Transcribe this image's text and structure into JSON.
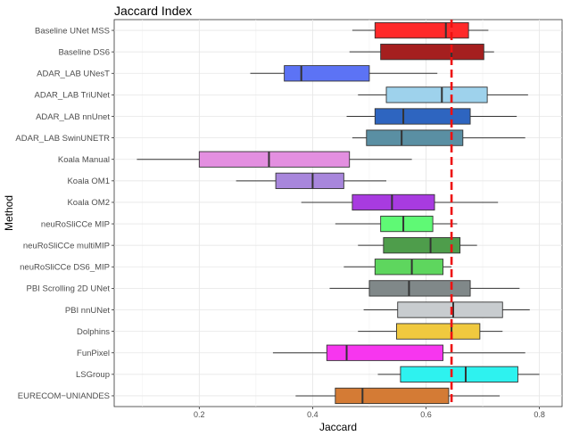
{
  "chart_data": {
    "type": "boxplot",
    "title": "Jaccard Index",
    "xlabel": "Jaccard",
    "ylabel": "Method",
    "xlim": [
      0.05,
      0.84
    ],
    "xticks": [
      0.2,
      0.4,
      0.6,
      0.8
    ],
    "xtick_labels": [
      "0.2",
      "0.4",
      "0.6",
      "0.8"
    ],
    "reference_line": {
      "x": 0.645,
      "color": "#ee1111",
      "style": "dashed"
    },
    "grid": true,
    "categories": [
      {
        "label": "Baseline UNet MSS",
        "whisker_low": 0.47,
        "q1": 0.51,
        "median": 0.635,
        "q3": 0.675,
        "whisker_high": 0.71,
        "color": "#ff2a2a"
      },
      {
        "label": "Baseline DS6",
        "whisker_low": 0.465,
        "q1": 0.52,
        "median": 0.645,
        "q3": 0.702,
        "whisker_high": 0.72,
        "color": "#a51f1f"
      },
      {
        "label": "ADAR_LAB UNesT",
        "whisker_low": 0.29,
        "q1": 0.35,
        "median": 0.38,
        "q3": 0.5,
        "whisker_high": 0.62,
        "color": "#5c73f5"
      },
      {
        "label": "ADAR_LAB TriUNet",
        "whisker_low": 0.48,
        "q1": 0.53,
        "median": 0.628,
        "q3": 0.708,
        "whisker_high": 0.78,
        "color": "#9ed2ec"
      },
      {
        "label": "ADAR_LAB nnUnet",
        "whisker_low": 0.46,
        "q1": 0.51,
        "median": 0.56,
        "q3": 0.678,
        "whisker_high": 0.76,
        "color": "#2e65c0"
      },
      {
        "label": "ADAR_LAB SwinUNETR",
        "whisker_low": 0.47,
        "q1": 0.495,
        "median": 0.557,
        "q3": 0.665,
        "whisker_high": 0.775,
        "color": "#5a8fa3"
      },
      {
        "label": "Koala Manual",
        "whisker_low": 0.09,
        "q1": 0.2,
        "median": 0.323,
        "q3": 0.465,
        "whisker_high": 0.575,
        "color": "#e38fe0"
      },
      {
        "label": "Koala OM1",
        "whisker_low": 0.265,
        "q1": 0.335,
        "median": 0.4,
        "q3": 0.455,
        "whisker_high": 0.53,
        "color": "#a886dc"
      },
      {
        "label": "Koala OM2",
        "whisker_low": 0.38,
        "q1": 0.47,
        "median": 0.54,
        "q3": 0.615,
        "whisker_high": 0.727,
        "color": "#a83be0"
      },
      {
        "label": "neuRoSliCCe MIP",
        "whisker_low": 0.44,
        "q1": 0.52,
        "median": 0.56,
        "q3": 0.612,
        "whisker_high": 0.655,
        "color": "#5ff975"
      },
      {
        "label": "neuRoSliCCe multiMIP",
        "whisker_low": 0.48,
        "q1": 0.525,
        "median": 0.608,
        "q3": 0.66,
        "whisker_high": 0.69,
        "color": "#4e9d4b"
      },
      {
        "label": "neuRoSliCCe DS6_MIP",
        "whisker_low": 0.455,
        "q1": 0.51,
        "median": 0.575,
        "q3": 0.63,
        "whisker_high": 0.645,
        "color": "#5ed65e"
      },
      {
        "label": "PBI Scrolling 2D UNet",
        "whisker_low": 0.43,
        "q1": 0.5,
        "median": 0.57,
        "q3": 0.678,
        "whisker_high": 0.765,
        "color": "#808889"
      },
      {
        "label": "PBI nnUNet",
        "whisker_low": 0.49,
        "q1": 0.55,
        "median": 0.648,
        "q3": 0.735,
        "whisker_high": 0.783,
        "color": "#c8cccf"
      },
      {
        "label": "Dolphins",
        "whisker_low": 0.48,
        "q1": 0.548,
        "median": 0.645,
        "q3": 0.695,
        "whisker_high": 0.735,
        "color": "#f0c93f"
      },
      {
        "label": "FunPixel",
        "whisker_low": 0.33,
        "q1": 0.425,
        "median": 0.46,
        "q3": 0.63,
        "whisker_high": 0.775,
        "color": "#f736ef"
      },
      {
        "label": "LSGroup",
        "whisker_low": 0.515,
        "q1": 0.555,
        "median": 0.67,
        "q3": 0.762,
        "whisker_high": 0.8,
        "color": "#2ef2ef"
      },
      {
        "label": "EURECOM−UNIANDES",
        "whisker_low": 0.37,
        "q1": 0.44,
        "median": 0.488,
        "q3": 0.64,
        "whisker_high": 0.73,
        "color": "#d47b35"
      }
    ]
  }
}
